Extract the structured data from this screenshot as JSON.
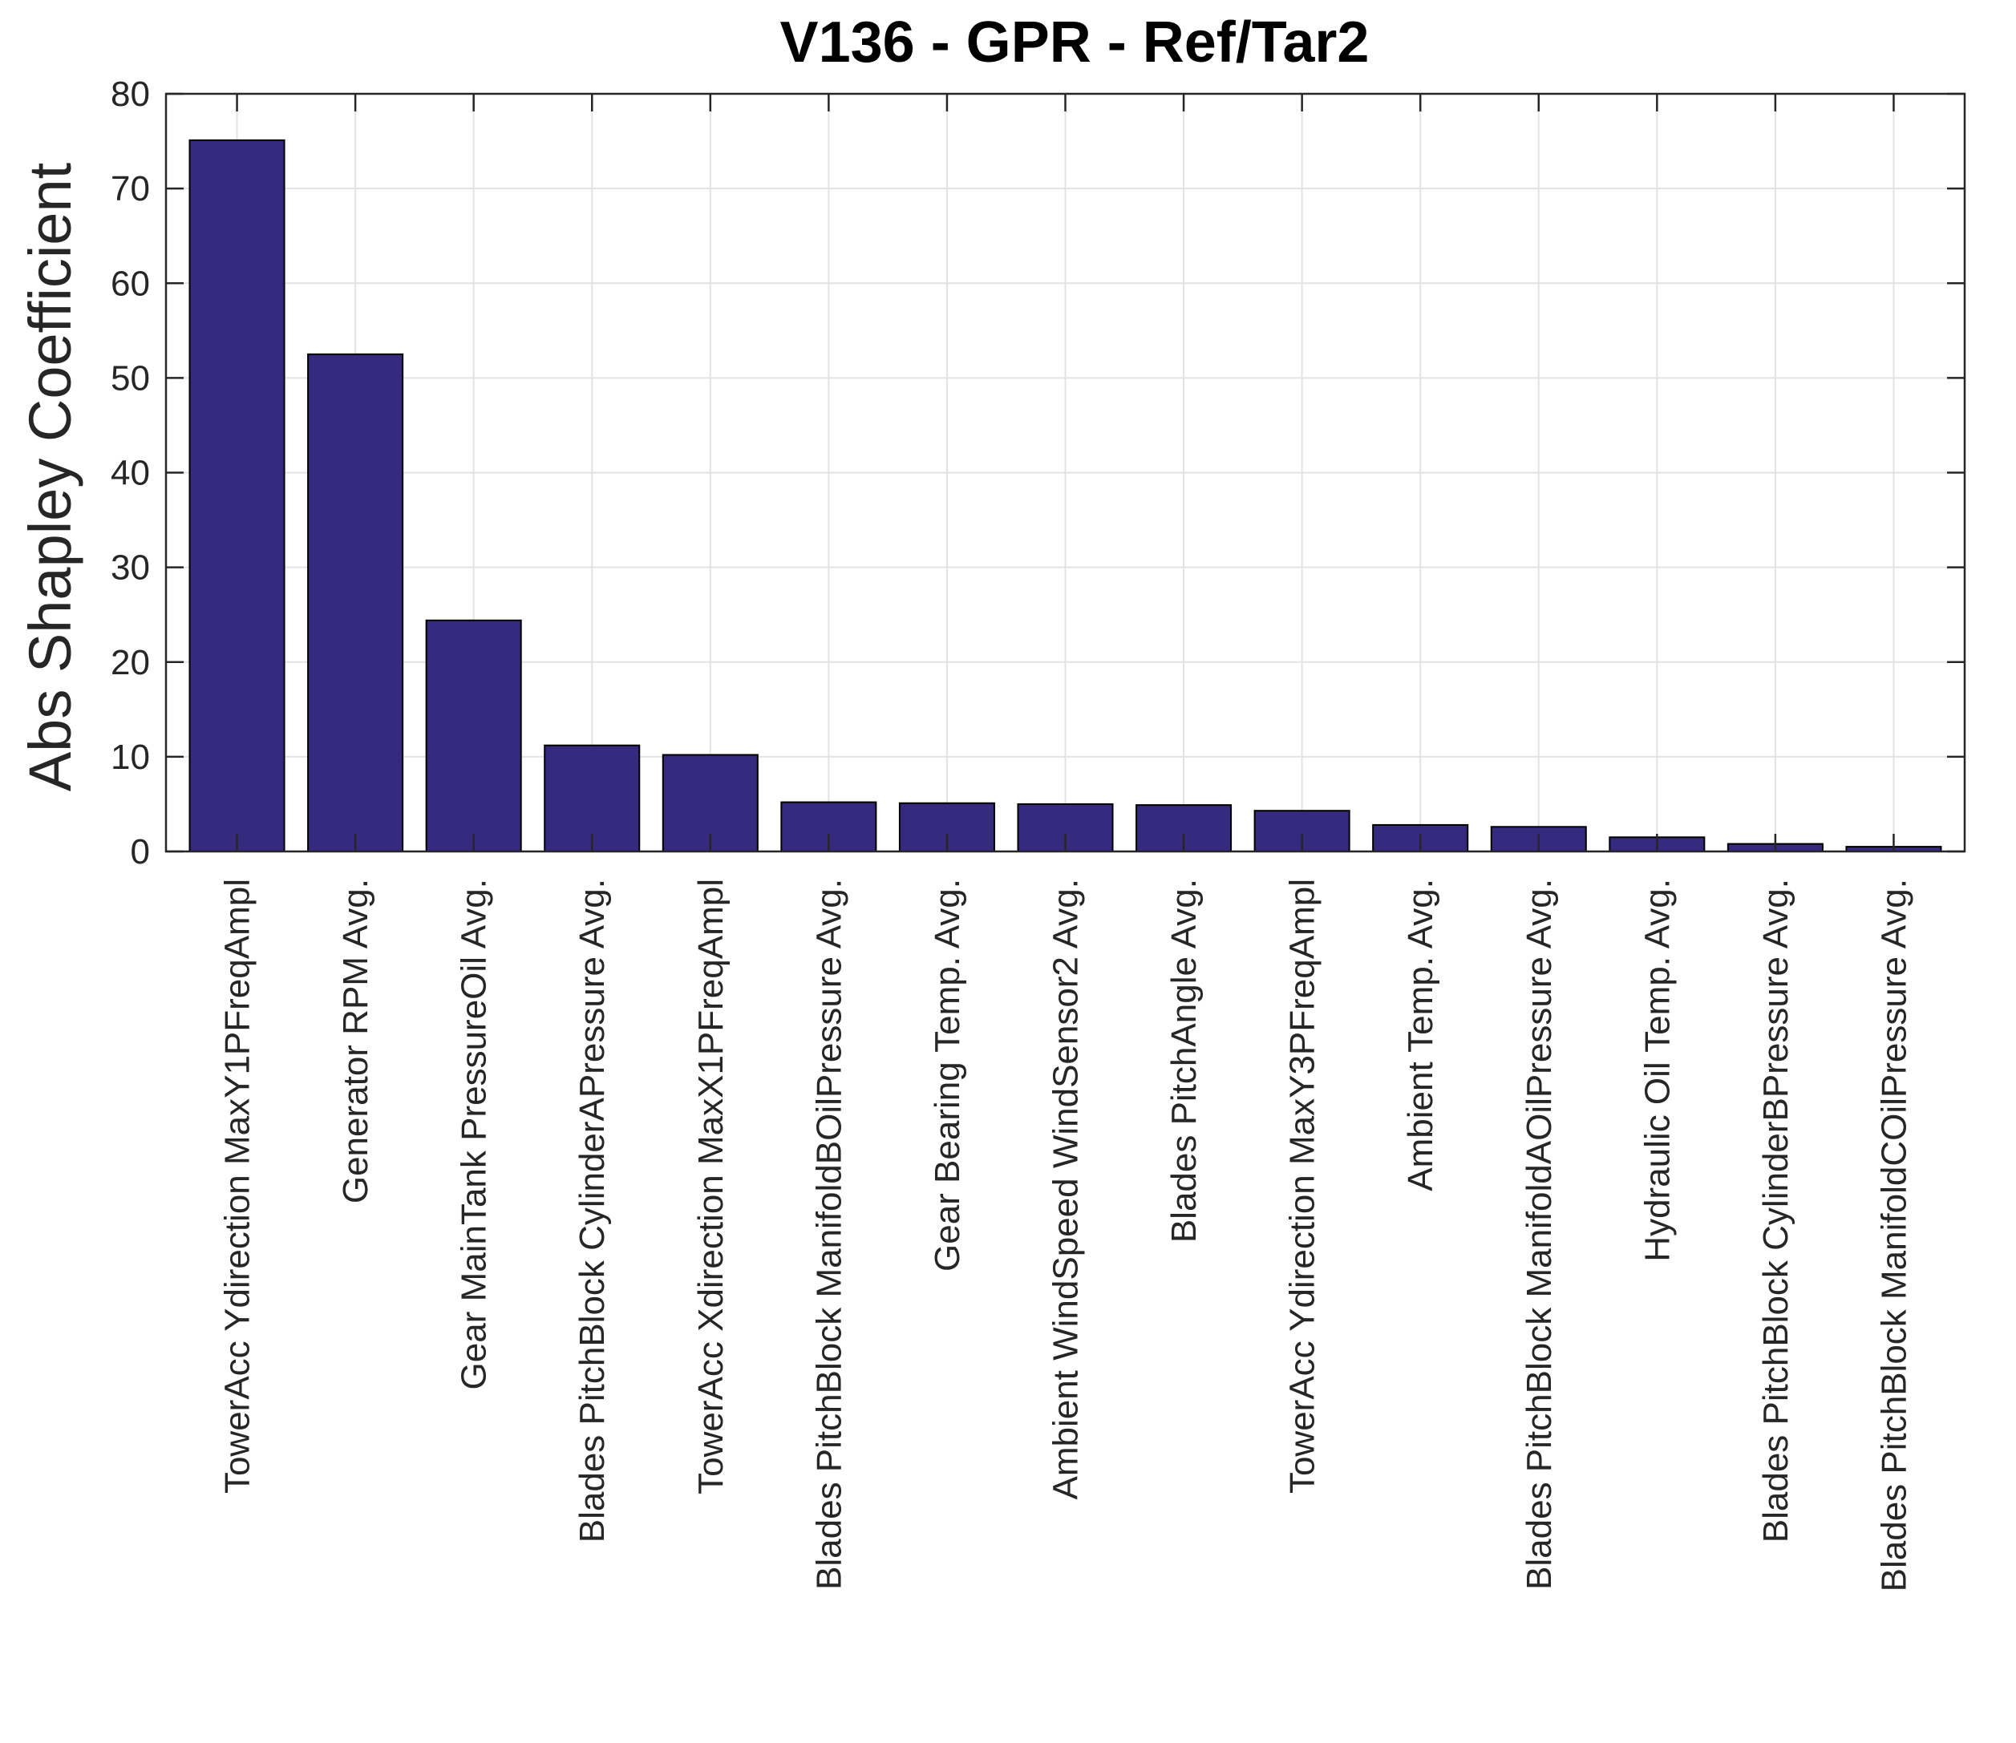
{
  "chart_data": {
    "type": "bar",
    "title": "V136 - GPR - Ref/Tar2",
    "xlabel": "",
    "ylabel": "Abs Shapley Coefficient",
    "ylim": [
      0,
      80
    ],
    "yticks": [
      "0",
      "10",
      "20",
      "30",
      "40",
      "50",
      "60",
      "70",
      "80"
    ],
    "grid": true,
    "bar_color": "#352a7d",
    "categories": [
      "TowerAcc Ydirection MaxY1PFreqAmpl",
      "Generator RPM Avg.",
      "Gear MainTank PressureOil Avg.",
      "Blades PitchBlock CylinderAPressure Avg.",
      "TowerAcc Xdirection MaxX1PFreqAmpl",
      "Blades PitchBlock ManifoldBOilPressure Avg.",
      "Gear Bearing Temp. Avg.",
      "Ambient WindSpeed WindSensor2 Avg.",
      "Blades PitchAngle Avg.",
      "TowerAcc Ydirection MaxY3PFreqAmpl",
      "Ambient Temp. Avg.",
      "Blades PitchBlock ManifoldAOilPressure Avg.",
      "Hydraulic Oil Temp. Avg.",
      "Blades PitchBlock CylinderBPressure Avg.",
      "Blades PitchBlock ManifoldCOilPressure Avg."
    ],
    "values": [
      75.1,
      52.5,
      24.4,
      11.2,
      10.2,
      5.2,
      5.1,
      5.0,
      4.9,
      4.3,
      2.8,
      2.6,
      1.5,
      0.8,
      0.5
    ]
  }
}
